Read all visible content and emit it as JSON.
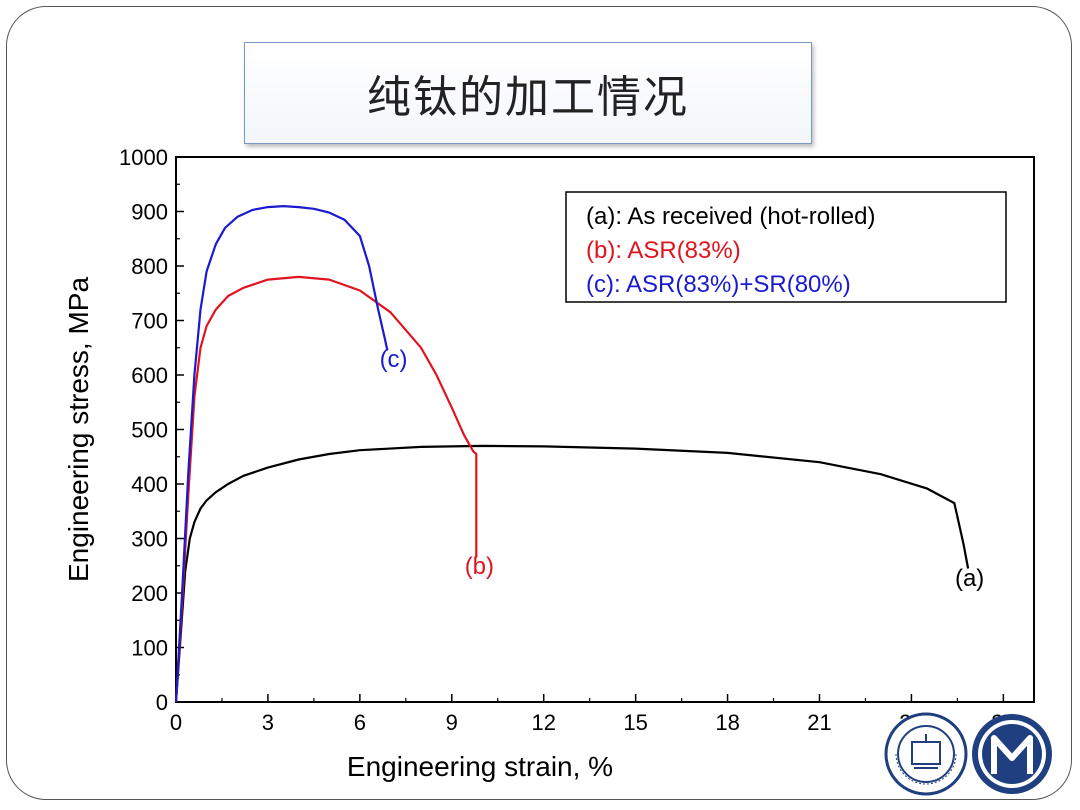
{
  "slide": {
    "title": "纯钛的加工情况"
  },
  "chart_data": {
    "type": "line",
    "title": "",
    "xlabel": "Engineering strain, %",
    "ylabel": "Engineering stress, MPa",
    "xlim": [
      0,
      28
    ],
    "ylim": [
      0,
      1000
    ],
    "xticks": [
      0,
      3,
      6,
      9,
      12,
      15,
      18,
      21,
      24,
      27
    ],
    "yticks": [
      0,
      100,
      200,
      300,
      400,
      500,
      600,
      700,
      800,
      900,
      1000
    ],
    "grid": false,
    "legend_position": "top-right",
    "legend": [
      {
        "label": "(a): As received (hot-rolled)",
        "color": "#000000"
      },
      {
        "label": "(b): ASR(83%)",
        "color": "#e0141e"
      },
      {
        "label": "(c): ASR(83%)+SR(80%)",
        "color": "#1a1ad0"
      }
    ],
    "series": [
      {
        "color": "#000000",
        "annotation": {
          "text": "(a)",
          "x": 25.9,
          "y": 213
        },
        "x": [
          0,
          0.15,
          0.3,
          0.45,
          0.6,
          0.8,
          1.0,
          1.3,
          1.7,
          2.2,
          3,
          4,
          5,
          6,
          8,
          10,
          12,
          15,
          18,
          21,
          23,
          24.5,
          25.4,
          25.5,
          25.7,
          25.85
        ],
        "y": [
          0,
          120,
          240,
          300,
          330,
          355,
          370,
          385,
          400,
          415,
          430,
          445,
          455,
          462,
          468,
          470,
          469,
          465,
          457,
          440,
          418,
          392,
          365,
          340,
          290,
          245
        ]
      },
      {
        "color": "#e0141e",
        "annotation": {
          "text": "(b)",
          "x": 9.9,
          "y": 235
        },
        "x": [
          0,
          0.2,
          0.4,
          0.6,
          0.8,
          1.0,
          1.3,
          1.7,
          2.2,
          3,
          4,
          5,
          6,
          7,
          8,
          8.5,
          9,
          9.4,
          9.7,
          9.8,
          9.8,
          9.8
        ],
        "y": [
          0,
          180,
          380,
          560,
          650,
          690,
          720,
          745,
          760,
          775,
          780,
          775,
          755,
          715,
          650,
          600,
          540,
          490,
          460,
          455,
          350,
          265
        ]
      },
      {
        "color": "#1a1ad0",
        "annotation": {
          "text": "(c)",
          "x": 7.1,
          "y": 615
        },
        "x": [
          0,
          0.2,
          0.4,
          0.6,
          0.8,
          1.0,
          1.3,
          1.6,
          2.0,
          2.5,
          3.0,
          3.5,
          4.0,
          4.5,
          5.0,
          5.5,
          6.0,
          6.3,
          6.6,
          6.8,
          6.9
        ],
        "y": [
          0,
          200,
          420,
          600,
          720,
          790,
          840,
          870,
          890,
          903,
          908,
          910,
          908,
          905,
          898,
          885,
          855,
          800,
          720,
          670,
          645
        ]
      }
    ]
  }
}
